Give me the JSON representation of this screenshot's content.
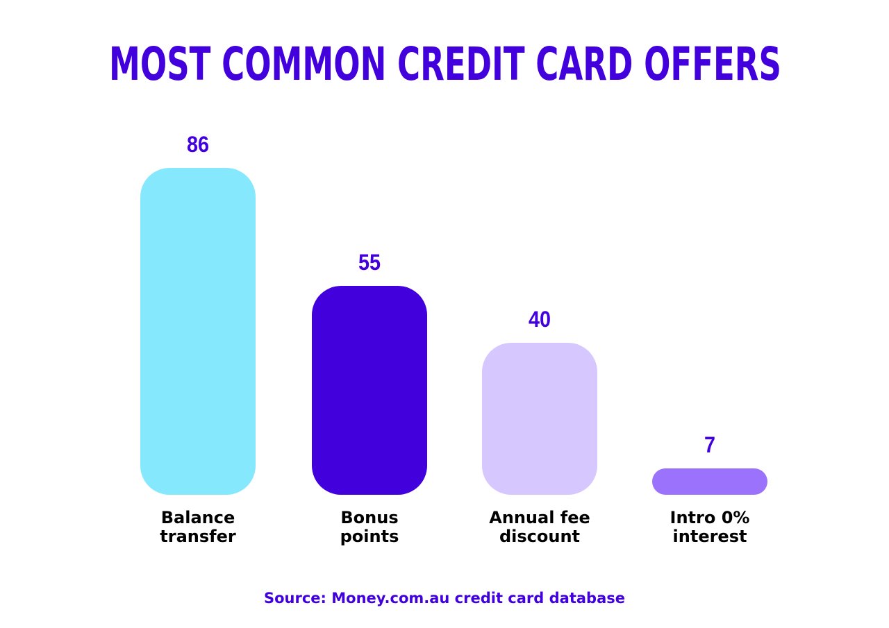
{
  "chart_data": {
    "type": "bar",
    "title": "MOST COMMON CREDIT CARD OFFERS",
    "categories": [
      "Balance transfer",
      "Bonus points",
      "Annual fee discount",
      "Intro 0% interest"
    ],
    "values": [
      86,
      55,
      40,
      7
    ],
    "colors": [
      "#85e8fc",
      "#4200dc",
      "#d6c8fe",
      "#9b72fc"
    ],
    "source": "Source: Money.com.au credit card database"
  }
}
